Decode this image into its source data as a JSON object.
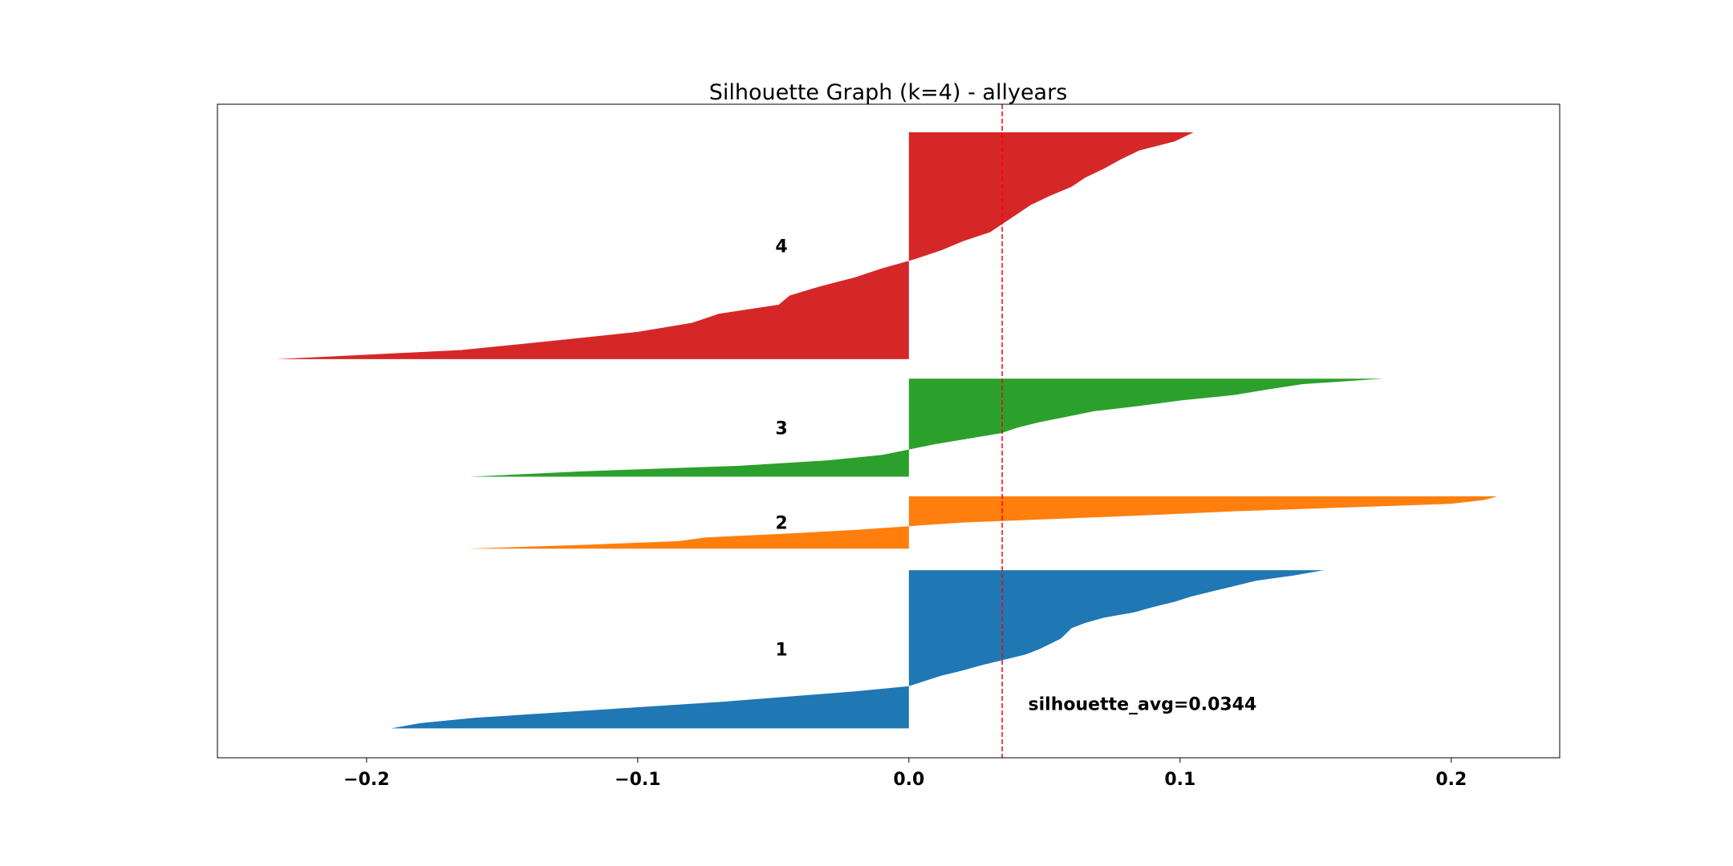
{
  "chart_data": {
    "type": "area",
    "title": "Silhouette Graph (k=4) - allyears",
    "xlabel": "",
    "ylabel": "",
    "xlim": [
      -0.255,
      0.24
    ],
    "ylim": [
      0,
      1000
    ],
    "grid": false,
    "xticks": [
      -0.2,
      -0.1,
      0.0,
      0.1,
      0.2
    ],
    "xtick_labels": [
      "−0.2",
      "−0.1",
      "0.0",
      "0.1",
      "0.2"
    ],
    "average_line": {
      "value": 0.0344,
      "color": "#ff0000",
      "style": "dashed"
    },
    "annotation": {
      "text": "silhouette_avg=0.0344",
      "x": 0.044,
      "y": 83
    },
    "clusters": [
      {
        "label": "1",
        "color": "#1f77b4",
        "y_lower": 45,
        "y_upper": 287,
        "label_x": -0.047,
        "values": [
          0.153,
          0.142,
          0.128,
          0.12,
          0.112,
          0.104,
          0.098,
          0.09,
          0.083,
          0.072,
          0.065,
          0.06,
          0.058,
          0.056,
          0.052,
          0.048,
          0.043,
          0.035,
          0.027,
          0.02,
          0.012,
          0.006,
          0.0,
          -0.02,
          -0.045,
          -0.07,
          -0.1,
          -0.13,
          -0.16,
          -0.18,
          -0.191
        ]
      },
      {
        "label": "2",
        "color": "#ff7f0e",
        "y_lower": 320,
        "y_upper": 400,
        "label_x": -0.047,
        "values": [
          0.217,
          0.212,
          0.2,
          0.16,
          0.12,
          0.09,
          0.055,
          0.02,
          0.0,
          -0.02,
          -0.046,
          -0.075,
          -0.085,
          -0.12,
          -0.163
        ]
      },
      {
        "label": "3",
        "color": "#2ca02c",
        "y_lower": 430,
        "y_upper": 580,
        "label_x": -0.047,
        "values": [
          0.175,
          0.145,
          0.132,
          0.12,
          0.1,
          0.085,
          0.068,
          0.058,
          0.048,
          0.04,
          0.034,
          0.022,
          0.01,
          0.0,
          -0.01,
          -0.03,
          -0.063,
          -0.12,
          -0.162
        ]
      },
      {
        "label": "4",
        "color": "#d62728",
        "y_lower": 610,
        "y_upper": 957,
        "label_x": -0.047,
        "values": [
          0.105,
          0.098,
          0.085,
          0.078,
          0.072,
          0.065,
          0.06,
          0.052,
          0.045,
          0.04,
          0.035,
          0.03,
          0.02,
          0.012,
          0.002,
          -0.01,
          -0.02,
          -0.033,
          -0.044,
          -0.048,
          -0.07,
          -0.08,
          -0.1,
          -0.132,
          -0.165,
          -0.233
        ]
      }
    ]
  }
}
